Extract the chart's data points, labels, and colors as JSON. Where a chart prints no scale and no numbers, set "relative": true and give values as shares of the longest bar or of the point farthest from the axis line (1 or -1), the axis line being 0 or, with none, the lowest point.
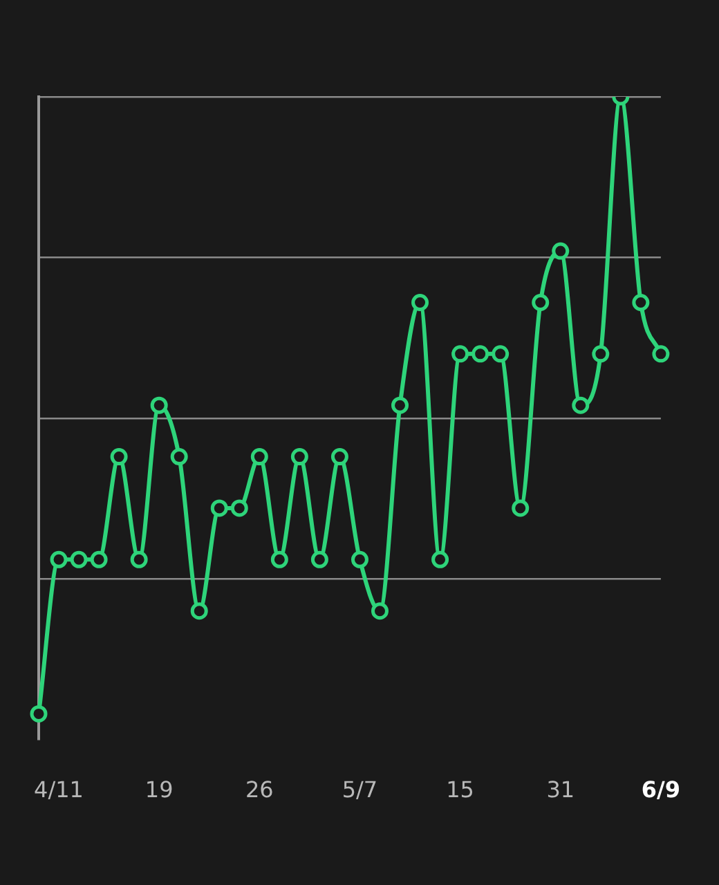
{
  "chart_data": {
    "type": "line",
    "relative": true,
    "grid": "y",
    "marker": "circle",
    "line_style": "solid",
    "legend": false,
    "categories": [
      null,
      "4/11",
      null,
      null,
      null,
      null,
      "19",
      null,
      null,
      null,
      null,
      "26",
      null,
      null,
      null,
      null,
      "5/7",
      null,
      null,
      null,
      null,
      "15",
      null,
      null,
      null,
      null,
      "31",
      null,
      null,
      null,
      null,
      "6/9"
    ],
    "series": [
      {
        "color": "#2ed47a",
        "values": [
          0.04,
          0.28,
          0.28,
          0.28,
          0.44,
          0.28,
          0.52,
          0.44,
          0.2,
          0.36,
          0.36,
          0.44,
          0.28,
          0.44,
          0.28,
          0.44,
          0.28,
          0.2,
          0.52,
          0.68,
          0.28,
          0.6,
          0.6,
          0.6,
          0.36,
          0.68,
          0.76,
          0.52,
          0.6,
          1,
          0.68,
          0.6
        ]
      }
    ]
  }
}
